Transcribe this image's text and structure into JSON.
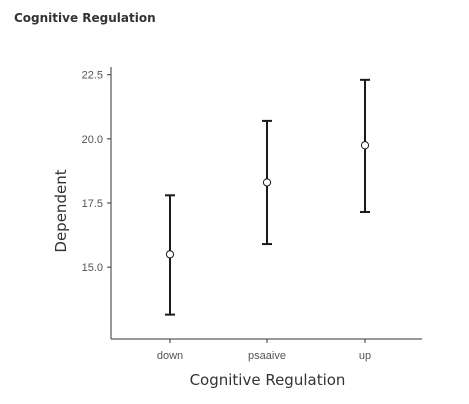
{
  "page": {
    "title": "Cognitive Regulation"
  },
  "chart_data": {
    "type": "scatter",
    "subtype": "point-with-error-bars",
    "title": "",
    "xlabel": "Cognitive Regulation",
    "ylabel": "Dependent",
    "categories": [
      "down",
      "psaaive",
      "up"
    ],
    "series": [
      {
        "values": [
          15.5,
          18.3,
          19.75
        ],
        "lower": [
          13.15,
          15.9,
          17.15
        ],
        "upper": [
          17.8,
          20.7,
          22.3
        ]
      }
    ],
    "yticks": [
      15.0,
      17.5,
      20.0,
      22.5
    ],
    "ytick_labels": [
      "15.0",
      "17.5",
      "20.0",
      "22.5"
    ],
    "ylim": [
      12.2,
      22.8
    ],
    "grid": false,
    "legend": "none",
    "colors": {
      "axis": "#333333",
      "errorbar": "#1a1a1a",
      "point_fill": "#ffffff",
      "point_stroke": "#1a1a1a"
    }
  }
}
